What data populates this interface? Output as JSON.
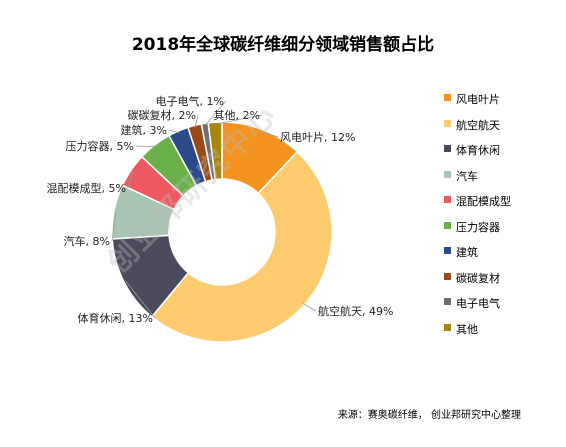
{
  "chart_data": {
    "type": "pie",
    "title": "2018年全球碳纤维细分领域销售额占比",
    "categories": [
      "风电叶片",
      "航空航天",
      "体育休闲",
      "汽车",
      "混配模成型",
      "压力容器",
      "建筑",
      "碳碳复材",
      "电子电气",
      "其他"
    ],
    "values": [
      12,
      49,
      13,
      8,
      5,
      5,
      3,
      2,
      1,
      2
    ],
    "data_labels": [
      "风电叶片, 12%",
      "航空航天, 49%",
      "体育休闲, 13%",
      "汽车, 8%",
      "混配模成型, 5%",
      "压力容器, 5%",
      "建筑, 3%",
      "碳碳复材, 2%",
      "电子电气, 1%",
      "其他, 2%"
    ],
    "colors": [
      "#F4931E",
      "#FECC6E",
      "#4B4A5C",
      "#A8C4B3",
      "#EE5A5F",
      "#6AAF47",
      "#2A4A8C",
      "#9A4A17",
      "#6F6F6F",
      "#A8840A"
    ],
    "donut": true,
    "legend_position": "right"
  },
  "watermark": "创业邦研究中心",
  "source": "来源：赛奥碳纤维， 创业邦研究中心整理"
}
